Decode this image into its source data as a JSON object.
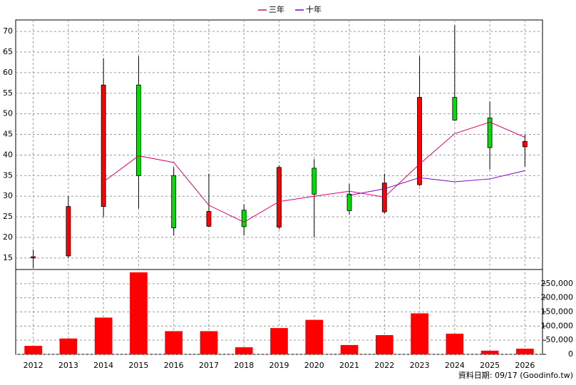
{
  "chart_data": {
    "type": "candlestick",
    "categories": [
      "2012",
      "2013",
      "2014",
      "2015",
      "2016",
      "2017",
      "2018",
      "2019",
      "2020",
      "2021",
      "2022",
      "2023",
      "2024",
      "2025",
      "2026"
    ],
    "open": [
      15.0,
      15.5,
      27.5,
      57.0,
      35.0,
      22.7,
      26.6,
      22.5,
      36.8,
      30.5,
      26.2,
      32.8,
      54.0,
      49.0,
      42.0
    ],
    "high": [
      17.0,
      30.0,
      63.5,
      64.0,
      37.0,
      35.5,
      28.0,
      37.5,
      39.0,
      33.0,
      35.5,
      64.0,
      71.5,
      53.0,
      45.0
    ],
    "low": [
      12.5,
      15.0,
      25.0,
      27.0,
      20.5,
      22.5,
      20.5,
      22.0,
      20.0,
      25.5,
      25.8,
      32.5,
      48.3,
      36.5,
      37.2
    ],
    "close": [
      15.3,
      27.5,
      57.0,
      35.0,
      22.3,
      26.3,
      22.6,
      37.0,
      30.5,
      26.5,
      33.2,
      54.0,
      48.5,
      41.8,
      43.3
    ],
    "up_color": "#ff0000",
    "down_color": "#00dd00",
    "series": [
      {
        "name": "三年",
        "color": "#e0006a",
        "values": [
          null,
          null,
          33.5,
          39.8,
          38.2,
          27.8,
          23.7,
          28.7,
          30.0,
          31.2,
          29.8,
          37.8,
          45.2,
          48.0,
          44.3
        ]
      },
      {
        "name": "十年",
        "color": "#8000c0",
        "values": [
          null,
          null,
          null,
          null,
          null,
          null,
          null,
          null,
          null,
          30.2,
          31.8,
          34.5,
          33.5,
          34.2,
          36.2
        ]
      }
    ],
    "ylim": [
      12.2,
      72.8
    ],
    "yticks": [
      15,
      20,
      25,
      30,
      35,
      40,
      45,
      50,
      55,
      60,
      65,
      70
    ],
    "volume": {
      "color": "#ff0000",
      "values": [
        30000,
        56000,
        130000,
        290000,
        82000,
        82000,
        25000,
        93000,
        122000,
        33000,
        68000,
        145000,
        73000,
        13000,
        20000
      ],
      "ylim": [
        0,
        295000
      ],
      "yticks": [
        0,
        {
          "value": 50000,
          "label": "50,000"
        },
        {
          "value": 100000,
          "label": "100,000"
        },
        {
          "value": 150000,
          "label": "150,000"
        },
        {
          "value": 200000,
          "label": "200,000"
        },
        {
          "value": 250000,
          "label": "250,000"
        }
      ]
    },
    "grid": true,
    "source": "資料日期: 09/17  (Goodinfo.tw)"
  }
}
